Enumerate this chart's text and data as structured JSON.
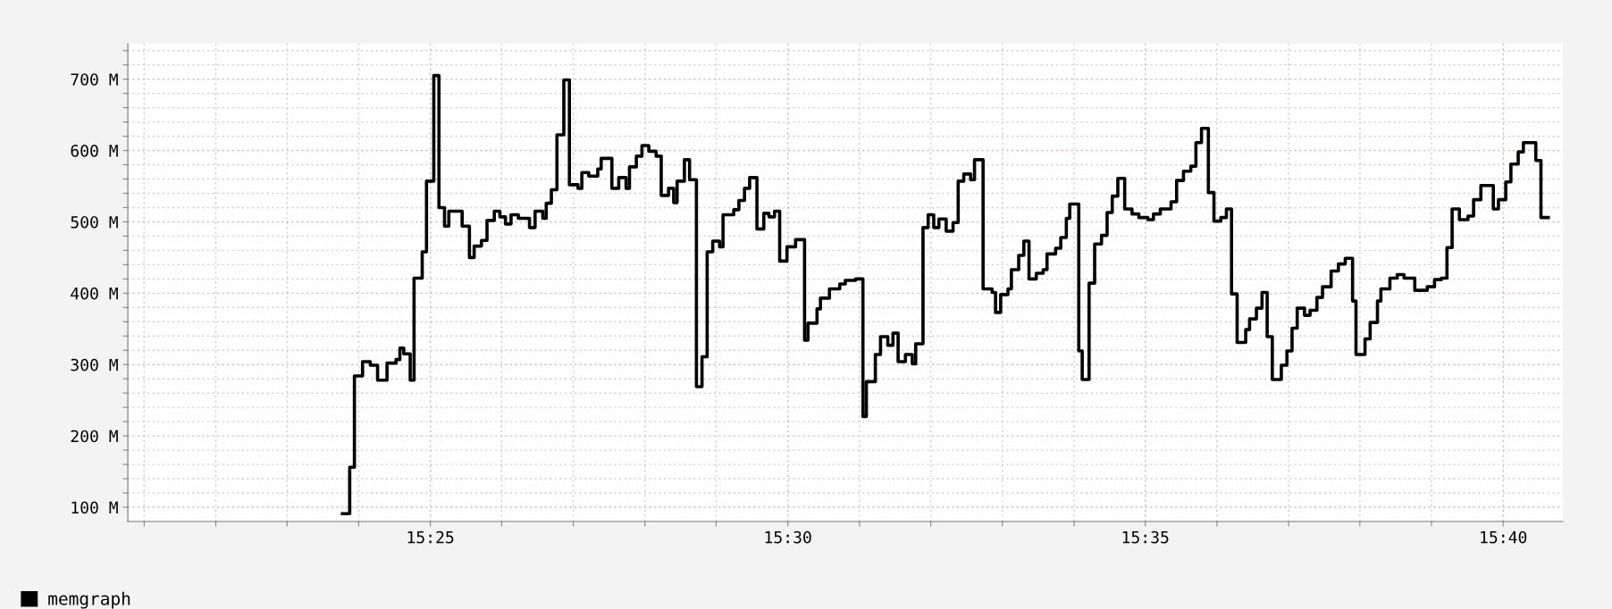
{
  "chart_data": {
    "type": "step",
    "legend": "bottom left",
    "grid": true,
    "marker": "none",
    "line_style": "solid",
    "xlim": [
      15.3462,
      15.6806
    ],
    "ylim": [
      80,
      750
    ],
    "xticks": [
      {
        "value": 15.35,
        "label": null
      },
      {
        "value": 15.3667,
        "label": null
      },
      {
        "value": 15.3833,
        "label": null
      },
      {
        "value": 15.4,
        "label": null
      },
      {
        "value": 15.4167,
        "label": "15:25"
      },
      {
        "value": 15.4333,
        "label": null
      },
      {
        "value": 15.45,
        "label": null
      },
      {
        "value": 15.4667,
        "label": null
      },
      {
        "value": 15.4833,
        "label": null
      },
      {
        "value": 15.5,
        "label": "15:30"
      },
      {
        "value": 15.5167,
        "label": null
      },
      {
        "value": 15.5333,
        "label": null
      },
      {
        "value": 15.55,
        "label": null
      },
      {
        "value": 15.5667,
        "label": null
      },
      {
        "value": 15.5833,
        "label": "15:35"
      },
      {
        "value": 15.6,
        "label": null
      },
      {
        "value": 15.6167,
        "label": null
      },
      {
        "value": 15.6333,
        "label": null
      },
      {
        "value": 15.65,
        "label": null
      },
      {
        "value": 15.6667,
        "label": "15:40"
      }
    ],
    "yticks": [
      {
        "value": 100,
        "label": "100 M"
      },
      {
        "value": 120,
        "label": null
      },
      {
        "value": 140,
        "label": null
      },
      {
        "value": 160,
        "label": null
      },
      {
        "value": 180,
        "label": null
      },
      {
        "value": 200,
        "label": "200 M"
      },
      {
        "value": 220,
        "label": null
      },
      {
        "value": 240,
        "label": null
      },
      {
        "value": 260,
        "label": null
      },
      {
        "value": 280,
        "label": null
      },
      {
        "value": 300,
        "label": "300 M"
      },
      {
        "value": 320,
        "label": null
      },
      {
        "value": 340,
        "label": null
      },
      {
        "value": 360,
        "label": null
      },
      {
        "value": 380,
        "label": null
      },
      {
        "value": 400,
        "label": "400 M"
      },
      {
        "value": 420,
        "label": null
      },
      {
        "value": 440,
        "label": null
      },
      {
        "value": 460,
        "label": null
      },
      {
        "value": 480,
        "label": null
      },
      {
        "value": 500,
        "label": "500 M"
      },
      {
        "value": 520,
        "label": null
      },
      {
        "value": 540,
        "label": null
      },
      {
        "value": 560,
        "label": null
      },
      {
        "value": 580,
        "label": null
      },
      {
        "value": 600,
        "label": "600 M"
      },
      {
        "value": 620,
        "label": null
      },
      {
        "value": 640,
        "label": null
      },
      {
        "value": 660,
        "label": null
      },
      {
        "value": 680,
        "label": null
      },
      {
        "value": 700,
        "label": "700 M"
      },
      {
        "value": 720,
        "label": null
      },
      {
        "value": 740,
        "label": null
      }
    ],
    "series": [
      {
        "name": "memgraph",
        "color": "#000000",
        "x": [
          15.3962,
          15.3979,
          15.399,
          15.4009,
          15.4027,
          15.4044,
          15.4066,
          15.4087,
          15.4096,
          15.4105,
          15.412,
          15.4129,
          15.4148,
          15.4158,
          15.4175,
          15.4187,
          15.42,
          15.421,
          15.4241,
          15.4258,
          15.4269,
          15.4286,
          15.4299,
          15.4316,
          15.4329,
          15.4342,
          15.4355,
          15.4372,
          15.4398,
          15.4411,
          15.4429,
          15.4437,
          15.4449,
          15.4462,
          15.4478,
          15.4491,
          15.4511,
          15.452,
          15.4536,
          15.4557,
          15.4565,
          15.459,
          15.4606,
          15.4623,
          15.4631,
          15.4647,
          15.466,
          15.4676,
          15.4693,
          15.4705,
          15.4722,
          15.4734,
          15.4742,
          15.4759,
          15.4771,
          15.4787,
          15.48,
          15.4812,
          15.4825,
          15.4841,
          15.4849,
          15.4874,
          15.4886,
          15.4899,
          15.4911,
          15.4928,
          15.4944,
          15.4956,
          15.4969,
          15.4981,
          15.4998,
          15.5018,
          15.5039,
          15.5047,
          15.5068,
          15.5076,
          15.5097,
          15.5121,
          15.5134,
          15.5158,
          15.5175,
          15.5183,
          15.5204,
          15.5216,
          15.5233,
          15.5245,
          15.5257,
          15.5274,
          15.529,
          15.5298,
          15.5315,
          15.5327,
          15.534,
          15.5352,
          15.5369,
          15.5385,
          15.5397,
          15.541,
          15.5426,
          15.5435,
          15.5455,
          15.5476,
          15.5484,
          15.5496,
          15.5513,
          15.5521,
          15.5538,
          15.555,
          15.5562,
          15.5579,
          15.5595,
          15.5604,
          15.5624,
          15.5636,
          15.5649,
          15.5657,
          15.5678,
          15.5686,
          15.5702,
          15.5715,
          15.5731,
          15.5744,
          15.5756,
          15.5769,
          15.5785,
          15.5802,
          15.5818,
          15.5839,
          15.5852,
          15.5868,
          15.5893,
          15.5906,
          15.5922,
          15.5939,
          15.5951,
          15.5964,
          15.598,
          15.5993,
          15.6009,
          15.6022,
          15.6034,
          15.6047,
          15.6067,
          15.6076,
          15.6092,
          15.6105,
          15.6117,
          15.6129,
          15.615,
          15.6163,
          15.6175,
          15.6187,
          15.6204,
          15.6217,
          15.6233,
          15.6246,
          15.6266,
          15.6283,
          15.6299,
          15.6316,
          15.6324,
          15.6345,
          15.6357,
          15.6374,
          15.6382,
          15.6403,
          15.642,
          15.6436,
          15.6461,
          15.649,
          15.6507,
          15.6523,
          15.6536,
          15.6548,
          15.6565,
          15.6585,
          15.6598,
          15.6615,
          15.6644,
          15.6656,
          15.6673,
          15.6685,
          15.6702,
          15.6714,
          15.6743,
          15.6755,
          15.6772
        ],
        "values": [
          91,
          156,
          284,
          304,
          299,
          278,
          302,
          307,
          323,
          315,
          278,
          421,
          458,
          557,
          705,
          520,
          494,
          515,
          494,
          450,
          466,
          474,
          502,
          515,
          507,
          497,
          510,
          505,
          492,
          515,
          505,
          526,
          545,
          622,
          699,
          552,
          547,
          569,
          564,
          574,
          589,
          547,
          562,
          547,
          577,
          592,
          607,
          599,
          592,
          537,
          547,
          527,
          557,
          587,
          559,
          269,
          311,
          458,
          473,
          465,
          510,
          517,
          530,
          547,
          562,
          490,
          512,
          507,
          515,
          445,
          465,
          475,
          334,
          358,
          378,
          393,
          406,
          413,
          418,
          420,
          227,
          276,
          314,
          339,
          327,
          344,
          304,
          314,
          301,
          329,
          492,
          510,
          492,
          504,
          487,
          499,
          557,
          567,
          559,
          587,
          406,
          401,
          373,
          398,
          406,
          433,
          453,
          473,
          420,
          428,
          433,
          455,
          463,
          478,
          505,
          525,
          319,
          279,
          414,
          469,
          481,
          513,
          536,
          561,
          518,
          511,
          506,
          503,
          511,
          518,
          528,
          558,
          571,
          578,
          611,
          631,
          541,
          501,
          506,
          518,
          399,
          331,
          349,
          364,
          379,
          401,
          339,
          279,
          299,
          319,
          351,
          379,
          369,
          376,
          394,
          409,
          431,
          441,
          449,
          389,
          314,
          336,
          359,
          389,
          406,
          421,
          426,
          421,
          404,
          409,
          419,
          421,
          464,
          518,
          503,
          508,
          531,
          551,
          518,
          531,
          556,
          581,
          598,
          611,
          586,
          506,
          506
        ]
      }
    ]
  }
}
